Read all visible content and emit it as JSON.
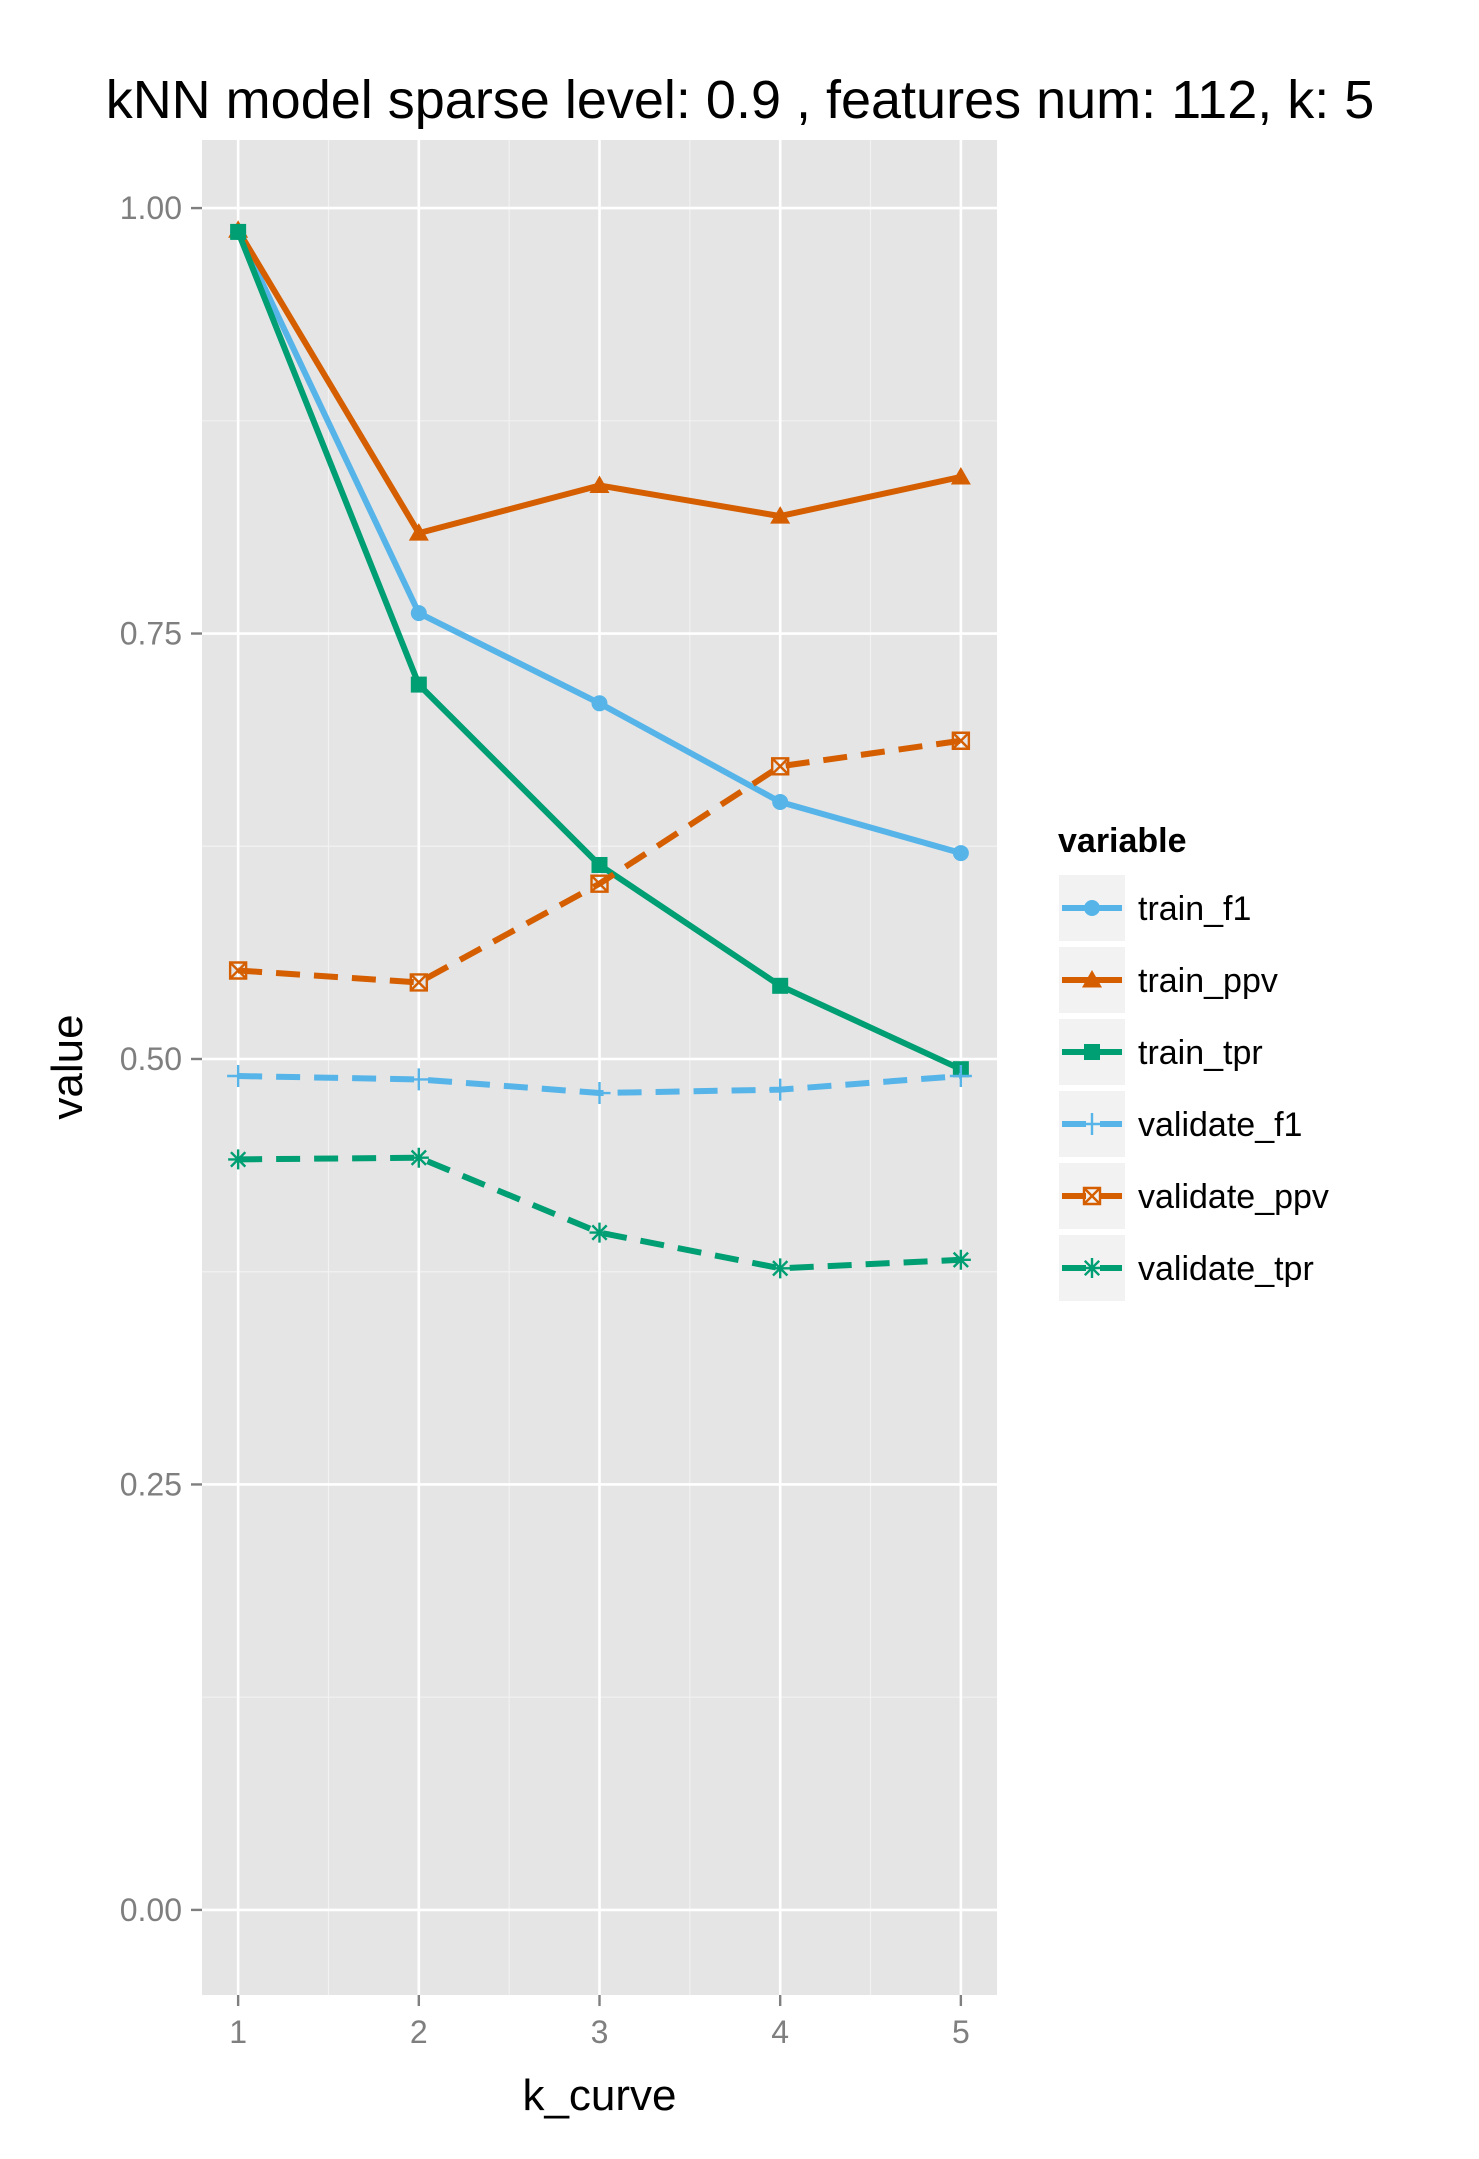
{
  "chart_data": {
    "type": "line",
    "title": "kNN model sparse level: 0.9 , features num: 112, k: 5",
    "xlabel": "k_curve",
    "ylabel": "value",
    "x": [
      1,
      2,
      3,
      4,
      5
    ],
    "xlim": [
      0.8,
      5.2
    ],
    "ylim": [
      -0.05,
      1.04
    ],
    "y_ticks": [
      0.0,
      0.25,
      0.5,
      0.75,
      1.0
    ],
    "y_tick_labels": [
      "0.00",
      "0.25",
      "0.50",
      "0.75",
      "1.00"
    ],
    "x_tick_labels": [
      "1",
      "2",
      "3",
      "4",
      "5"
    ],
    "grid": true,
    "legend": {
      "title": "variable",
      "placement": "right"
    },
    "series": [
      {
        "name": "train_f1",
        "values": [
          0.986,
          0.762,
          0.709,
          0.651,
          0.621
        ],
        "color": "#56B4E9",
        "dash": "solid",
        "marker": "circle"
      },
      {
        "name": "train_ppv",
        "values": [
          0.987,
          0.809,
          0.837,
          0.819,
          0.842
        ],
        "color": "#D55E00",
        "dash": "solid",
        "marker": "triangle"
      },
      {
        "name": "train_tpr",
        "values": [
          0.986,
          0.72,
          0.614,
          0.543,
          0.494
        ],
        "color": "#009E73",
        "dash": "solid",
        "marker": "square"
      },
      {
        "name": "validate_f1",
        "values": [
          0.49,
          0.488,
          0.48,
          0.482,
          0.49
        ],
        "color": "#56B4E9",
        "dash": "dashed",
        "marker": "plus"
      },
      {
        "name": "validate_ppv",
        "values": [
          0.552,
          0.545,
          0.603,
          0.672,
          0.687
        ],
        "color": "#D55E00",
        "dash": "dashed",
        "marker": "square-x"
      },
      {
        "name": "validate_tpr",
        "values": [
          0.441,
          0.442,
          0.398,
          0.377,
          0.382
        ],
        "color": "#009E73",
        "dash": "dashed",
        "marker": "asterisk"
      }
    ]
  }
}
